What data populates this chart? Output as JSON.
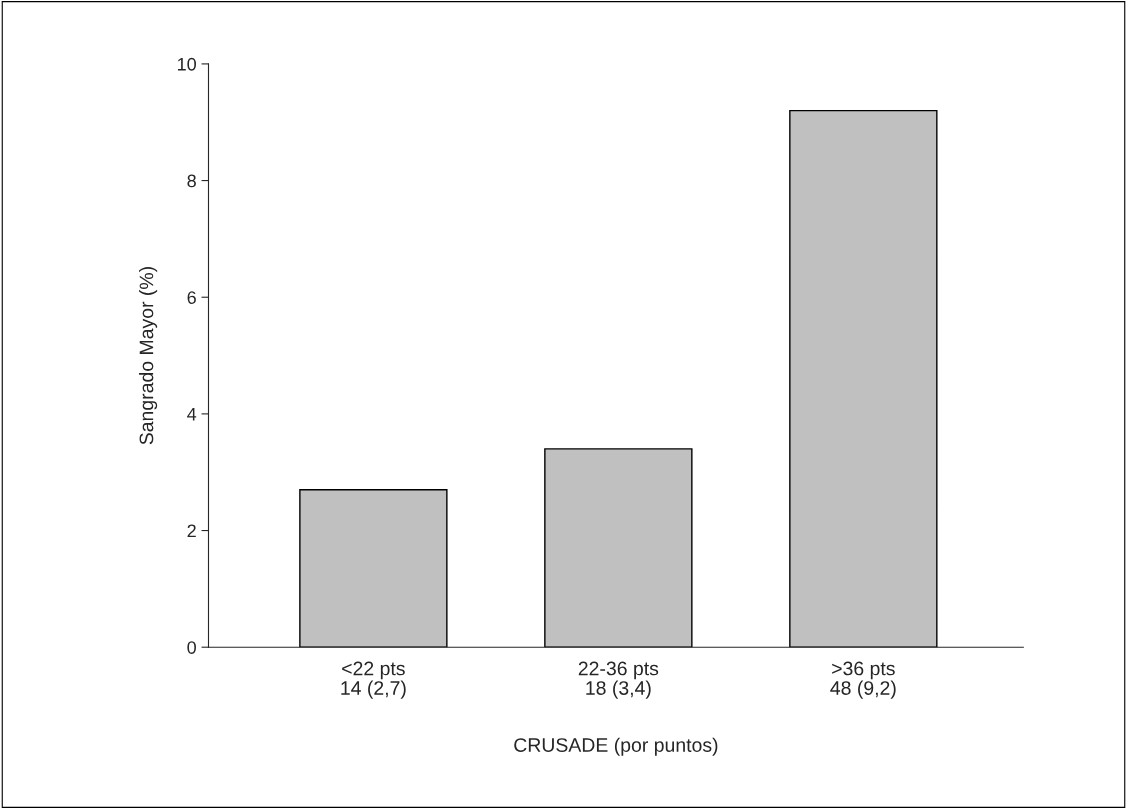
{
  "chart_data": {
    "type": "bar",
    "xlabel": "CRUSADE (por puntos)",
    "ylabel": "Sangrado Mayor (%)",
    "categories": [
      "<22 pts\n14 (2,7)",
      "22-36 pts\n18 (3,4)",
      ">36 pts\n48 (9,2)"
    ],
    "values": [
      2.7,
      3.4,
      9.2
    ],
    "color": "#c0c0c0",
    "ylim": [
      0,
      10
    ],
    "yticks": [
      0,
      2,
      4,
      6,
      8,
      10
    ],
    "grid": false,
    "legend": false
  }
}
